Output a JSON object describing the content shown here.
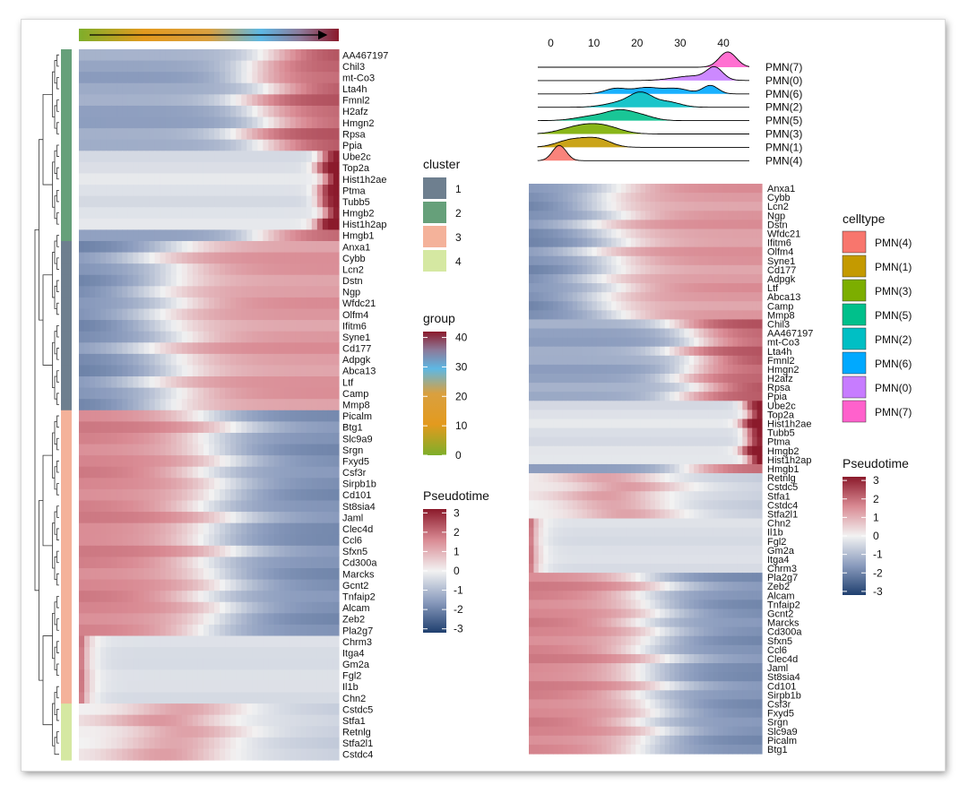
{
  "clusterLegend": {
    "title": "cluster",
    "items": [
      {
        "label": "1",
        "color": "#6e7f8f"
      },
      {
        "label": "2",
        "color": "#66a07a"
      },
      {
        "label": "3",
        "color": "#f4b29a"
      },
      {
        "label": "4",
        "color": "#d5e8a2"
      }
    ]
  },
  "groupLegend": {
    "title": "group",
    "ticks": [
      "40",
      "30",
      "20",
      "10",
      "0"
    ],
    "min": 0,
    "max": 42,
    "colors": [
      "#7eae2a",
      "#e39a1e",
      "#5db8e4",
      "#8c4a8a",
      "#8b1a2b"
    ]
  },
  "pseudotimeLegendLeft": {
    "title": "Pseudotime",
    "ticks": [
      "3",
      "2",
      "1",
      "0",
      "-1",
      "-2",
      "-3"
    ]
  },
  "pseudotimeLegendRight": {
    "title": "Pseudotime",
    "ticks": [
      "3",
      "2",
      "1",
      "0",
      "-1",
      "-2",
      "-3"
    ]
  },
  "celltypeLegend": {
    "title": "celltype",
    "items": [
      {
        "label": "PMN(4)",
        "color": "#f8766d"
      },
      {
        "label": "PMN(1)",
        "color": "#c49a00"
      },
      {
        "label": "PMN(3)",
        "color": "#7cae00"
      },
      {
        "label": "PMN(5)",
        "color": "#00c08b"
      },
      {
        "label": "PMN(2)",
        "color": "#00bfc4"
      },
      {
        "label": "PMN(6)",
        "color": "#00a9ff"
      },
      {
        "label": "PMN(0)",
        "color": "#c77cff"
      },
      {
        "label": "PMN(7)",
        "color": "#ff61cc"
      }
    ]
  },
  "chart_data": [
    {
      "type": "heatmap",
      "name": "left",
      "genes": [
        "AA467197",
        "Chil3",
        "mt-Co3",
        "Lta4h",
        "Fmnl2",
        "H2afz",
        "Hmgn2",
        "Rpsa",
        "Ppia",
        "Ube2c",
        "Top2a",
        "Hist1h2ae",
        "Ptma",
        "Tubb5",
        "Hmgb2",
        "Hist1h2ap",
        "Hmgb1",
        "Anxa1",
        "Cybb",
        "Lcn2",
        "Dstn",
        "Ngp",
        "Wfdc21",
        "Olfm4",
        "Ifitm6",
        "Syne1",
        "Cd177",
        "Adpgk",
        "Abca13",
        "Ltf",
        "Camp",
        "Mmp8",
        "Picalm",
        "Btg1",
        "Slc9a9",
        "Srgn",
        "Fxyd5",
        "Csf3r",
        "Sirpb1b",
        "Cd101",
        "St8sia4",
        "Jaml",
        "Clec4d",
        "Ccl6",
        "Sfxn5",
        "Cd300a",
        "Marcks",
        "Gcnt2",
        "Tnfaip2",
        "Alcam",
        "Zeb2",
        "Pla2g7",
        "Chrm3",
        "Itga4",
        "Gm2a",
        "Fgl2",
        "Il1b",
        "Chn2",
        "Cstdc5",
        "Stfa1",
        "Retnlg",
        "Stfa2l1",
        "Cstdc4"
      ],
      "clusters": [
        2,
        2,
        2,
        2,
        2,
        2,
        2,
        2,
        2,
        2,
        2,
        2,
        2,
        2,
        2,
        2,
        2,
        1,
        1,
        1,
        1,
        1,
        1,
        1,
        1,
        1,
        1,
        1,
        1,
        1,
        1,
        1,
        3,
        3,
        3,
        3,
        3,
        3,
        3,
        3,
        3,
        3,
        3,
        3,
        3,
        3,
        3,
        3,
        3,
        3,
        3,
        3,
        3,
        3,
        3,
        3,
        3,
        3,
        4,
        4,
        4,
        4,
        4
      ],
      "pattern": [
        "late",
        "late",
        "late",
        "late",
        "late",
        "late",
        "late",
        "late",
        "late",
        "spike",
        "spike",
        "spike",
        "spike",
        "spike",
        "spike",
        "spike",
        "late",
        "mid",
        "mid",
        "mid",
        "mid",
        "mid",
        "mid",
        "mid",
        "mid",
        "mid",
        "mid",
        "mid",
        "mid",
        "mid",
        "mid",
        "mid",
        "early",
        "early",
        "early",
        "early",
        "early",
        "early",
        "early",
        "early",
        "early",
        "early",
        "early",
        "early",
        "early",
        "early",
        "early",
        "early",
        "early",
        "early",
        "early",
        "early",
        "first",
        "first",
        "first",
        "first",
        "first",
        "first",
        "hump",
        "hump",
        "hump",
        "hump",
        "hump"
      ],
      "value_range": [
        -3,
        3
      ]
    },
    {
      "type": "heatmap",
      "name": "right",
      "genes": [
        "Anxa1",
        "Cybb",
        "Lcn2",
        "Ngp",
        "Dstn",
        "Wfdc21",
        "Ifitm6",
        "Olfm4",
        "Syne1",
        "Cd177",
        "Adpgk",
        "Ltf",
        "Abca13",
        "Camp",
        "Mmp8",
        "Chil3",
        "AA467197",
        "mt-Co3",
        "Lta4h",
        "Fmnl2",
        "Hmgn2",
        "H2afz",
        "Rpsa",
        "Ppia",
        "Ube2c",
        "Top2a",
        "Hist1h2ae",
        "Tubb5",
        "Ptma",
        "Hmgb2",
        "Hist1h2ap",
        "Hmgb1",
        "Retnlg",
        "Cstdc5",
        "Stfa1",
        "Cstdc4",
        "Stfa2l1",
        "Chn2",
        "Il1b",
        "Fgl2",
        "Gm2a",
        "Itga4",
        "Chrm3",
        "Pla2g7",
        "Zeb2",
        "Alcam",
        "Tnfaip2",
        "Gcnt2",
        "Marcks",
        "Cd300a",
        "Sfxn5",
        "Ccl6",
        "Clec4d",
        "Jaml",
        "St8sia4",
        "Cd101",
        "Sirpb1b",
        "Csf3r",
        "Fxyd5",
        "Srgn",
        "Slc9a9",
        "Picalm",
        "Btg1"
      ],
      "pattern": [
        "mid",
        "mid",
        "mid",
        "mid",
        "mid",
        "mid",
        "mid",
        "mid",
        "mid",
        "mid",
        "mid",
        "mid",
        "mid",
        "mid",
        "mid",
        "late",
        "late",
        "late",
        "late",
        "late",
        "late",
        "late",
        "late",
        "late",
        "spike",
        "spike",
        "spike",
        "spike",
        "spike",
        "spike",
        "spike",
        "late",
        "hump",
        "hump",
        "hump",
        "hump",
        "hump",
        "first",
        "first",
        "first",
        "first",
        "first",
        "first",
        "early",
        "early",
        "early",
        "early",
        "early",
        "early",
        "early",
        "early",
        "early",
        "early",
        "early",
        "early",
        "early",
        "early",
        "early",
        "early",
        "early",
        "early",
        "early",
        "early"
      ],
      "value_range": [
        -3,
        3
      ]
    },
    {
      "type": "area",
      "name": "ridgeline",
      "xticks": [
        "0",
        "10",
        "20",
        "30",
        "40"
      ],
      "xlim": [
        -3,
        46
      ],
      "series": [
        {
          "name": "PMN(7)",
          "peaks": [
            [
              41,
              2.0,
              1.0
            ]
          ]
        },
        {
          "name": "PMN(0)",
          "peaks": [
            [
              33,
              4.5,
              0.3
            ],
            [
              38,
              1.8,
              0.75
            ]
          ]
        },
        {
          "name": "PMN(6)",
          "peaks": [
            [
              15,
              2.5,
              0.35
            ],
            [
              22,
              3,
              0.4
            ],
            [
              29,
              3,
              0.35
            ],
            [
              37,
              1.8,
              0.55
            ]
          ]
        },
        {
          "name": "PMN(2)",
          "peaks": [
            [
              17,
              4,
              0.35
            ],
            [
              21,
              2.5,
              0.75
            ],
            [
              27,
              3,
              0.35
            ]
          ]
        },
        {
          "name": "PMN(5)",
          "peaks": [
            [
              10,
              4,
              0.3
            ],
            [
              16,
              3,
              0.55
            ],
            [
              21,
              3,
              0.3
            ]
          ]
        },
        {
          "name": "PMN(3)",
          "peaks": [
            [
              6,
              4,
              0.4
            ],
            [
              12,
              4,
              0.5
            ]
          ]
        },
        {
          "name": "PMN(1)",
          "peaks": [
            [
              5,
              3.5,
              0.5
            ],
            [
              11,
              3,
              0.5
            ]
          ]
        },
        {
          "name": "PMN(4)",
          "peaks": [
            [
              2,
              1.6,
              1.0
            ]
          ]
        }
      ]
    }
  ]
}
